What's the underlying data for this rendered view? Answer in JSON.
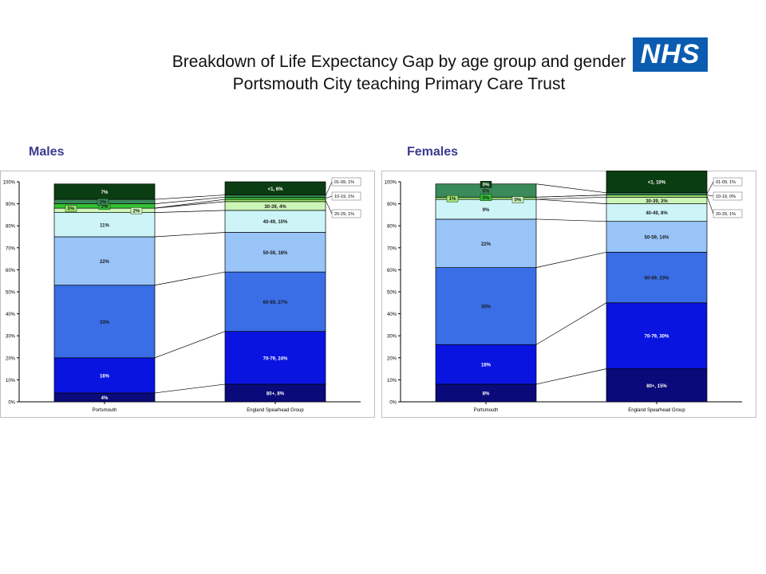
{
  "page": {
    "title_line1": "Breakdown of Life Expectancy Gap by age group and gender",
    "title_line2": "Portsmouth City teaching Primary Care Trust",
    "logo_text": "NHS",
    "logo_color": "#0b5cb0"
  },
  "chart_data": [
    {
      "name": "Males",
      "type": "bar",
      "stacked": true,
      "panel_title": "Males",
      "categories": [
        "Portsmouth",
        "England Spearhead Group"
      ],
      "ylim": [
        0,
        100
      ],
      "yticks": [
        "0%",
        "10%",
        "20%",
        "30%",
        "40%",
        "50%",
        "60%",
        "70%",
        "80%",
        "90%",
        "100%"
      ],
      "grid": false,
      "series": [
        {
          "name": "80+",
          "color": "#0a0a7a",
          "text_color": "#ffffff",
          "values": [
            4,
            8
          ],
          "labels": [
            "4%",
            "80+, 8%"
          ]
        },
        {
          "name": "70-79",
          "color": "#0a14e0",
          "text_color": "#ffffff",
          "values": [
            16,
            24
          ],
          "labels": [
            "16%",
            "70-79, 24%"
          ]
        },
        {
          "name": "60-69",
          "color": "#3a6ee6",
          "text_color": "#1a1a1a",
          "values": [
            33,
            27
          ],
          "labels": [
            "33%",
            "60-69, 27%"
          ]
        },
        {
          "name": "50-59",
          "color": "#98c4f8",
          "text_color": "#1a1a1a",
          "values": [
            22,
            18
          ],
          "labels": [
            "22%",
            "50-59, 18%"
          ]
        },
        {
          "name": "40-49",
          "color": "#cdf5f8",
          "text_color": "#1a1a1a",
          "values": [
            11,
            10
          ],
          "labels": [
            "11%",
            "40-49, 10%"
          ]
        },
        {
          "name": "30-39",
          "color": "#ccf5b8",
          "text_color": "#1a1a1a",
          "values": [
            2,
            4
          ],
          "labels": [
            "2%",
            "30-39, 4%"
          ]
        },
        {
          "name": "20-29",
          "color": "#9ee870",
          "text_color": "#1a1a1a",
          "values": [
            0,
            1
          ],
          "labels": [
            "0%",
            ""
          ],
          "side_label": "20-29, 1%"
        },
        {
          "name": "10-19",
          "color": "#33c233",
          "text_color": "#1a1a1a",
          "values": [
            2,
            1
          ],
          "labels": [
            "2%",
            ""
          ],
          "side_label": "10-19, 1%"
        },
        {
          "name": "01-09",
          "color": "#3a8a5a",
          "text_color": "#1a1a1a",
          "values": [
            2,
            1
          ],
          "labels": [
            "2%",
            ""
          ],
          "side_label": "01-09, 1%"
        },
        {
          "name": "<1",
          "color": "#0b3d12",
          "text_color": "#ffffff",
          "values": [
            7,
            6
          ],
          "labels": [
            "7%",
            "<1, 6%"
          ]
        }
      ]
    },
    {
      "name": "Females",
      "type": "bar",
      "stacked": true,
      "panel_title": "Females",
      "categories": [
        "Portsmouth",
        "England Spearhead Group"
      ],
      "ylim": [
        0,
        100
      ],
      "yticks": [
        "0%",
        "10%",
        "20%",
        "30%",
        "40%",
        "50%",
        "60%",
        "70%",
        "80%",
        "90%",
        "100%"
      ],
      "grid": false,
      "series": [
        {
          "name": "80+",
          "color": "#0a0a7a",
          "text_color": "#ffffff",
          "values": [
            8,
            15
          ],
          "labels": [
            "8%",
            "80+, 15%"
          ]
        },
        {
          "name": "70-79",
          "color": "#0a14e0",
          "text_color": "#ffffff",
          "values": [
            18,
            30
          ],
          "labels": [
            "18%",
            "70-79, 30%"
          ]
        },
        {
          "name": "60-69",
          "color": "#3a6ee6",
          "text_color": "#1a1a1a",
          "values": [
            35,
            23
          ],
          "labels": [
            "35%",
            "60-69, 23%"
          ]
        },
        {
          "name": "50-59",
          "color": "#98c4f8",
          "text_color": "#1a1a1a",
          "values": [
            22,
            14
          ],
          "labels": [
            "22%",
            "50-59, 14%"
          ]
        },
        {
          "name": "40-49",
          "color": "#cdf5f8",
          "text_color": "#1a1a1a",
          "values": [
            9,
            8
          ],
          "labels": [
            "9%",
            "40-49, 8%"
          ]
        },
        {
          "name": "30-39",
          "color": "#ccf5b8",
          "text_color": "#1a1a1a",
          "values": [
            0,
            3
          ],
          "labels": [
            "0%",
            "30-39, 3%"
          ]
        },
        {
          "name": "20-29",
          "color": "#9ee870",
          "text_color": "#1a1a1a",
          "values": [
            1,
            1
          ],
          "labels": [
            "1%",
            ""
          ],
          "side_label": "20-29, 1%"
        },
        {
          "name": "10-19",
          "color": "#33c233",
          "text_color": "#1a1a1a",
          "values": [
            0,
            0
          ],
          "labels": [
            "0%",
            ""
          ],
          "side_label": "10-19, 0%"
        },
        {
          "name": "01-09",
          "color": "#3a8a5a",
          "text_color": "#1a1a1a",
          "values": [
            6,
            1
          ],
          "labels": [
            "6%",
            ""
          ],
          "side_label": "01-09, 1%"
        },
        {
          "name": "<1",
          "color": "#0b3d12",
          "text_color": "#ffffff",
          "values": [
            0,
            10
          ],
          "labels": [
            "0%",
            "<1, 10%"
          ]
        }
      ]
    }
  ]
}
